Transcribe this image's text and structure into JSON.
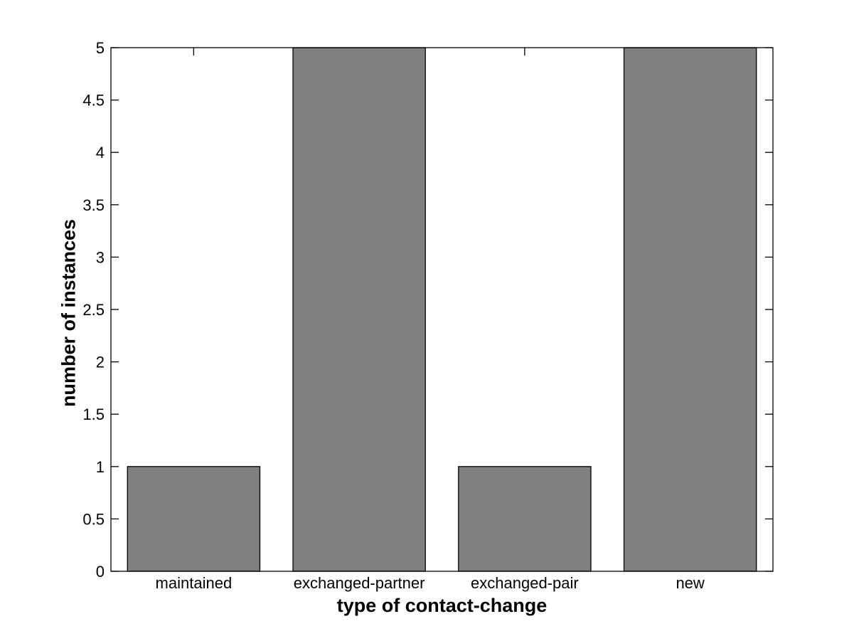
{
  "figure": {
    "background": "#ffffff"
  },
  "chart_data": {
    "type": "bar",
    "title": "",
    "categories": [
      "maintained",
      "exchanged-partner",
      "exchanged-pair",
      "new"
    ],
    "values": [
      1,
      5,
      1,
      5
    ],
    "xlabel": "type of contact-change",
    "ylabel": "number of instances",
    "ylim": [
      0,
      5
    ],
    "yticks": [
      0,
      0.5,
      1,
      1.5,
      2,
      2.5,
      3,
      3.5,
      4,
      4.5,
      5
    ],
    "ytick_labels": [
      "0",
      "0.5",
      "1",
      "1.5",
      "2",
      "2.5",
      "3",
      "3.5",
      "4",
      "4.5",
      "5"
    ],
    "bar_width_fraction": 0.8,
    "bar_color": "#808080",
    "bar_edge_color": "#000000",
    "axis_color": "#000000",
    "text_color": "#000000",
    "grid": false,
    "legend": null,
    "box": true,
    "tick_direction": "in"
  }
}
